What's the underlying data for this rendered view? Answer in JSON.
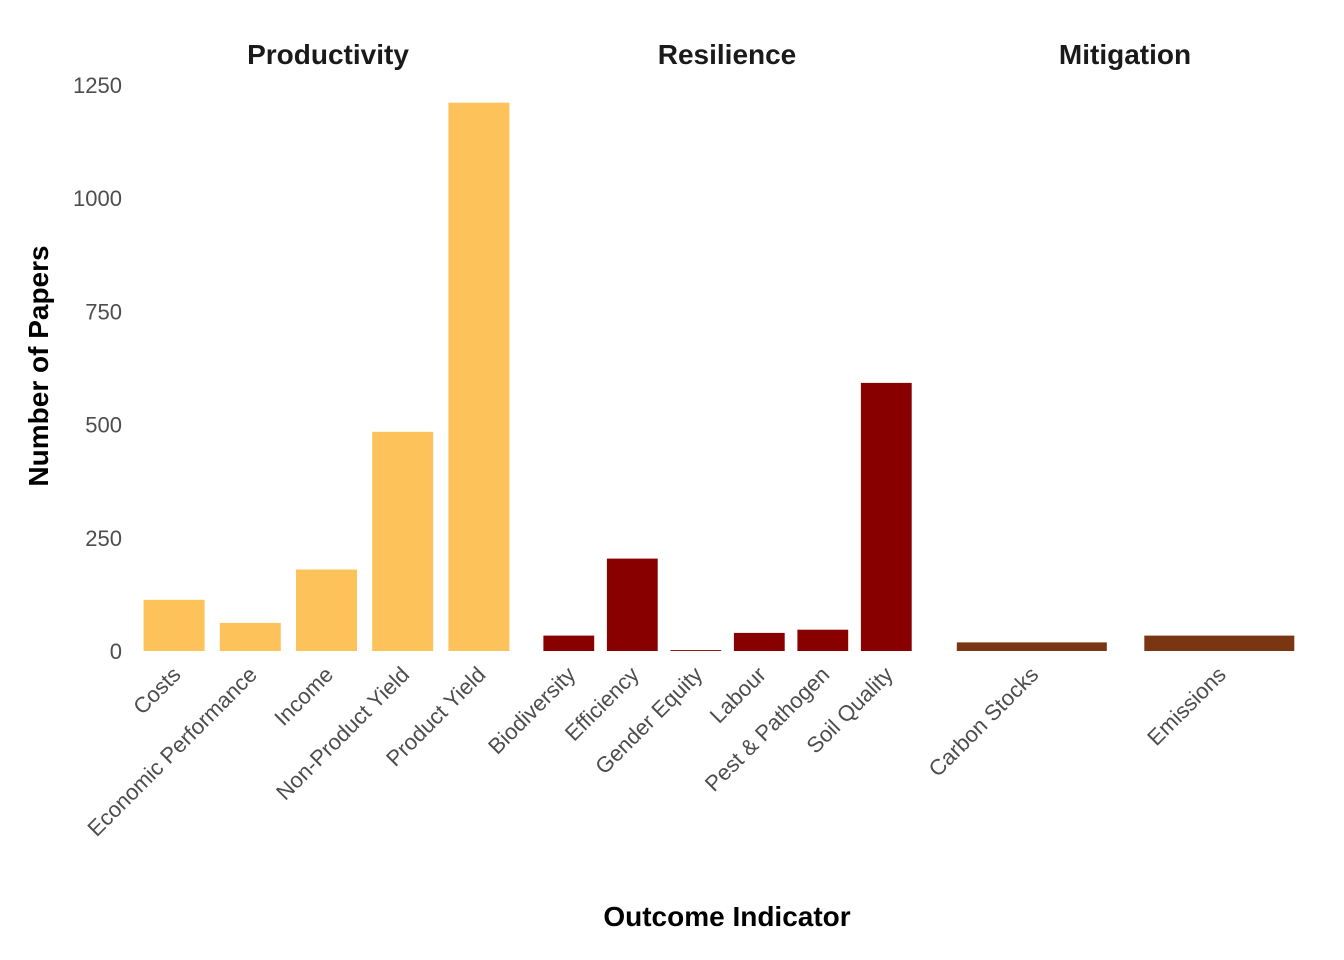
{
  "chart_data": {
    "type": "bar",
    "xlabel": "Outcome Indicator",
    "ylabel": "Number of Papers",
    "ylim": [
      0,
      1250
    ],
    "yticks": [
      0,
      250,
      500,
      750,
      1000,
      1250
    ],
    "grid": false,
    "panels": [
      {
        "title": "Productivity",
        "color": "#FDC35A",
        "categories": [
          "Costs",
          "Economic Performance",
          "Income",
          "Non-Product Yield",
          "Product Yield"
        ],
        "values": [
          113,
          62,
          180,
          484,
          1211
        ]
      },
      {
        "title": "Resilience",
        "color": "#880000",
        "categories": [
          "Biodiversity",
          "Efficiency",
          "Gender Equity",
          "Labour",
          "Pest & Pathogen",
          "Soil Quality"
        ],
        "values": [
          34,
          204,
          2,
          40,
          47,
          592
        ]
      },
      {
        "title": "Mitigation",
        "color": "#7A3513",
        "categories": [
          "Carbon Stocks",
          "Emissions"
        ],
        "values": [
          19,
          34
        ]
      }
    ]
  }
}
